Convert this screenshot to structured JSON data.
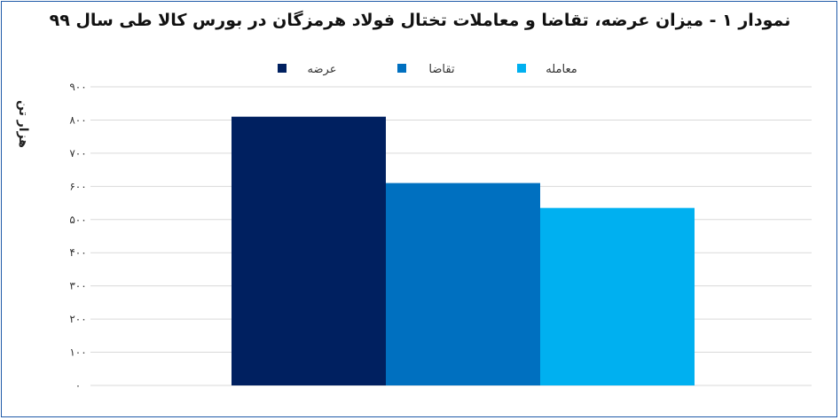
{
  "chart_data": {
    "type": "bar",
    "title": "نمودار ۱ - میزان عرضه، تقاضا و معاملات تختال فولاد هرمزگان در بورس کالا طی سال ۹۹",
    "ylabel": "هزار تن",
    "xlabel": "",
    "ylim": [
      0,
      900
    ],
    "yticks": [
      0,
      100,
      200,
      300,
      400,
      500,
      600,
      700,
      800,
      900
    ],
    "ytick_labels": [
      "۰",
      "۱۰۰",
      "۲۰۰",
      "۳۰۰",
      "۴۰۰",
      "۵۰۰",
      "۶۰۰",
      "۷۰۰",
      "۸۰۰",
      "۹۰۰"
    ],
    "grid": true,
    "legend_position": "top-center",
    "categories": [
      ""
    ],
    "series": [
      {
        "name": "عرضه",
        "values": [
          810
        ],
        "color": "#002060"
      },
      {
        "name": "تقاضا",
        "values": [
          610
        ],
        "color": "#0070c0"
      },
      {
        "name": "معامله",
        "values": [
          535
        ],
        "color": "#00b0f0"
      }
    ]
  }
}
